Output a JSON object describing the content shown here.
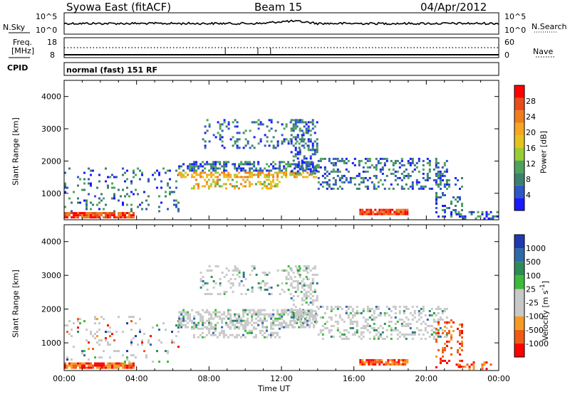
{
  "header": {
    "station": "Syowa East (fitACF)",
    "beam": "Beam 15",
    "date": "04/Apr/2012"
  },
  "strip_panels": {
    "noise": {
      "left_label": "N.Sky",
      "right_label": "N.Search",
      "left_ticks": [
        "10^5",
        "10^0"
      ],
      "right_ticks": [
        "10^5",
        "10^0"
      ]
    },
    "freq": {
      "left_label_line1": "Freq.",
      "left_label_line2": "[MHz]",
      "left_ticks": [
        "18",
        "8"
      ],
      "right_label": "Nave",
      "right_ticks": [
        "60",
        "0"
      ]
    },
    "cpid": {
      "label": "CPID",
      "text": "normal (fast) 151 RF"
    }
  },
  "colors": {
    "power": [
      "#1a1aff",
      "#2f57c8",
      "#3c7f6e",
      "#4ea35a",
      "#9acd32",
      "#e6c21e",
      "#f5a623",
      "#ef7d1a",
      "#e84c1a",
      "#ff0000"
    ],
    "velocity": [
      "#ff0000",
      "#f05a14",
      "#f59a23",
      "#c8c8c8",
      "#c8c8c8",
      "#3cba3c",
      "#2e8b57",
      "#2f6aa8",
      "#1f3ab0"
    ]
  },
  "chart_data": [
    {
      "type": "heatmap",
      "name": "power",
      "ylabel": "Slant Range [km]",
      "x_range_hours": [
        0,
        24
      ],
      "ylim": [
        180,
        4500
      ],
      "yticks": [
        1000,
        2000,
        3000,
        4000
      ],
      "colorbar": {
        "label": "Power [dB]",
        "range": [
          0,
          32
        ],
        "ticks": [
          4,
          8,
          12,
          16,
          20,
          24,
          28
        ]
      }
    },
    {
      "type": "heatmap",
      "name": "velocity",
      "ylabel": "Slant Range [km]",
      "xlabel": "Time UT",
      "x_range_hours": [
        0,
        24
      ],
      "ylim": [
        180,
        4500
      ],
      "yticks": [
        1000,
        2000,
        3000,
        4000
      ],
      "xticks": [
        "00:00",
        "04:00",
        "08:00",
        "12:00",
        "16:00",
        "20:00",
        "00:00"
      ],
      "colorbar": {
        "label": "Velocity [m s^-1]",
        "ticks": [
          "1000",
          "500",
          "100",
          "25",
          "-25",
          "-100",
          "-500",
          "-1000"
        ]
      }
    }
  ]
}
